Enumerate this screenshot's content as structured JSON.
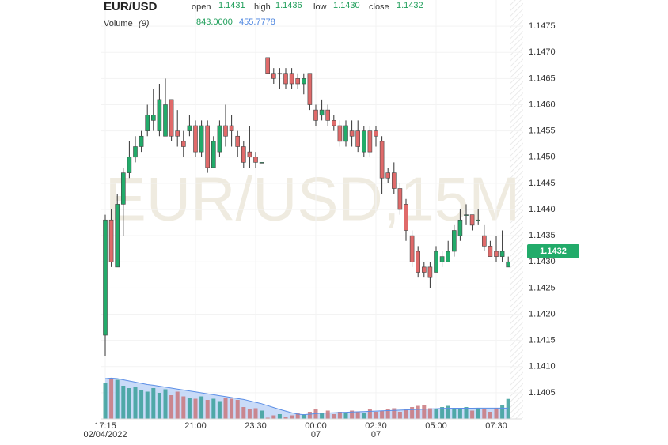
{
  "chart_data": {
    "type": "candlestick",
    "title": "EUR/USD",
    "watermark": "EUR/USD,15M",
    "ohlc_labels": [
      "open",
      "high",
      "low",
      "close"
    ],
    "ohlc_values": [
      1.1431,
      1.1436,
      1.143,
      1.1432
    ],
    "ohlc_value_labels": [
      "1.1431",
      "1.1436",
      "1.1430",
      "1.1432"
    ],
    "volume_label": "Volume",
    "volume_period": "(9)",
    "volume_legend_values": [
      843,
      455.7778
    ],
    "volume_legend_value_labels": [
      "843.0000",
      "455.7778"
    ],
    "categories": [
      "17:15",
      null,
      null,
      null,
      null,
      null,
      null,
      null,
      null,
      null,
      null,
      null,
      null,
      null,
      null,
      "21:00",
      null,
      null,
      null,
      null,
      null,
      null,
      null,
      null,
      null,
      "23:30",
      null,
      null,
      null,
      null,
      null,
      null,
      null,
      null,
      null,
      "00:00",
      null,
      null,
      null,
      null,
      null,
      null,
      null,
      null,
      null,
      "02:30",
      null,
      null,
      null,
      null,
      null,
      null,
      null,
      null,
      null,
      "05:00",
      null,
      null,
      null,
      null,
      null,
      null,
      null,
      null,
      null,
      "07:30",
      null,
      null
    ],
    "date_labels": [
      "02/04/2022",
      null,
      null,
      null,
      null,
      null,
      null,
      null,
      null,
      null,
      null,
      null,
      null,
      null,
      null,
      null,
      null,
      null,
      null,
      null,
      null,
      null,
      null,
      null,
      null,
      null,
      null,
      null,
      null,
      null,
      null,
      null,
      null,
      null,
      null,
      "07",
      null,
      null,
      null,
      null,
      null,
      null,
      null,
      null,
      null,
      "07",
      null,
      null,
      null,
      null,
      null,
      null,
      null,
      null,
      null,
      null,
      null,
      null,
      null,
      null,
      null,
      null,
      null,
      null,
      null,
      null,
      null,
      null
    ],
    "open": [
      1.1416,
      1.1438,
      1.1429,
      1.1441,
      1.1447,
      1.145,
      1.1452,
      1.1455,
      1.1457,
      1.1455,
      1.1454,
      1.1461,
      1.1455,
      1.1453,
      1.1455,
      1.1456,
      1.1451,
      1.1456,
      1.1448,
      1.1451,
      1.1456,
      1.1456,
      1.1454,
      1.1452,
      1.1451,
      1.145,
      1.1449,
      1.1469,
      1.1466,
      1.1466,
      1.1466,
      1.1466,
      1.1465,
      1.1464,
      1.1466,
      1.1459,
      1.1458,
      1.1459,
      1.1457,
      1.1456,
      1.1453,
      1.1455,
      1.1455,
      1.1451,
      1.1455,
      1.1455,
      1.1453,
      1.1447,
      1.1447,
      1.1444,
      1.1441,
      1.1435,
      1.1432,
      1.1429,
      1.1429,
      1.1428,
      1.143,
      1.143,
      1.1432,
      1.1435,
      1.1439,
      1.1439,
      1.1438,
      1.1435,
      1.1433,
      1.1432,
      1.1431,
      1.1429
    ],
    "high": [
      1.1439,
      1.144,
      1.1443,
      1.1448,
      1.1453,
      1.1454,
      1.1455,
      1.146,
      1.1463,
      1.1464,
      1.1465,
      1.1461,
      1.1459,
      1.1455,
      1.1458,
      1.1457,
      1.1457,
      1.1457,
      1.1454,
      1.1457,
      1.146,
      1.1458,
      1.1455,
      1.1453,
      1.1456,
      1.1451,
      1.1449,
      1.1469,
      1.1467,
      1.1467,
      1.1467,
      1.1467,
      1.1466,
      1.1466,
      1.1466,
      1.146,
      1.1461,
      1.146,
      1.1458,
      1.1457,
      1.1457,
      1.1457,
      1.1457,
      1.1456,
      1.1456,
      1.1456,
      1.1454,
      1.1448,
      1.1449,
      1.1445,
      1.1442,
      1.1436,
      1.1433,
      1.143,
      1.143,
      1.1433,
      1.1432,
      1.1434,
      1.1437,
      1.144,
      1.1441,
      1.1439,
      1.144,
      1.1437,
      1.1434,
      1.1435,
      1.1436,
      1.1431
    ],
    "low": [
      1.1412,
      1.1429,
      1.1429,
      1.1435,
      1.1446,
      1.1449,
      1.1451,
      1.1454,
      1.1455,
      1.1454,
      1.1454,
      1.1453,
      1.1452,
      1.145,
      1.1454,
      1.145,
      1.145,
      1.1447,
      1.1448,
      1.145,
      1.1452,
      1.1452,
      1.145,
      1.1448,
      1.1448,
      1.1448,
      1.1449,
      1.1466,
      1.1464,
      1.1463,
      1.1463,
      1.1463,
      1.1463,
      1.1462,
      1.1459,
      1.1456,
      1.1457,
      1.1456,
      1.1455,
      1.1452,
      1.1452,
      1.1452,
      1.1451,
      1.145,
      1.145,
      1.1452,
      1.1443,
      1.1445,
      1.1443,
      1.1439,
      1.1434,
      1.1429,
      1.1427,
      1.1427,
      1.1425,
      1.1428,
      1.1429,
      1.143,
      1.1431,
      1.1434,
      1.1437,
      1.1436,
      1.1437,
      1.1432,
      1.1431,
      1.143,
      1.143,
      1.1429
    ],
    "close": [
      1.1438,
      1.143,
      1.1441,
      1.1447,
      1.145,
      1.1452,
      1.1454,
      1.1458,
      1.1458,
      1.1461,
      1.146,
      1.1454,
      1.1454,
      1.1452,
      1.1456,
      1.1451,
      1.1456,
      1.1448,
      1.1453,
      1.1456,
      1.1454,
      1.1455,
      1.1452,
      1.1449,
      1.145,
      1.1449,
      1.1449,
      1.1466,
      1.1465,
      1.1466,
      1.1464,
      1.1464,
      1.1464,
      1.1465,
      1.146,
      1.1457,
      1.1459,
      1.1457,
      1.1456,
      1.1453,
      1.1456,
      1.1454,
      1.1452,
      1.1455,
      1.1451,
      1.1454,
      1.1446,
      1.1446,
      1.1444,
      1.144,
      1.1436,
      1.143,
      1.1428,
      1.1428,
      1.1427,
      1.1432,
      1.1431,
      1.1432,
      1.1436,
      1.1438,
      1.1439,
      1.1437,
      1.1438,
      1.1433,
      1.1431,
      1.1431,
      1.1432,
      1.143
    ],
    "volume": [
      1500,
      1700,
      1650,
      1400,
      1300,
      1350,
      1200,
      1150,
      1300,
      1100,
      1250,
      1000,
      1150,
      950,
      900,
      850,
      950,
      800,
      850,
      750,
      900,
      850,
      800,
      500,
      400,
      450,
      350,
      50,
      150,
      200,
      100,
      150,
      250,
      200,
      300,
      400,
      250,
      350,
      200,
      300,
      250,
      350,
      300,
      250,
      400,
      300,
      350,
      400,
      450,
      300,
      400,
      500,
      550,
      600,
      450,
      400,
      500,
      550,
      450,
      400,
      500,
      350,
      450,
      400,
      300,
      450,
      600,
      843
    ],
    "volume_ma": [
      1700,
      1720,
      1700,
      1650,
      1600,
      1550,
      1500,
      1450,
      1420,
      1380,
      1340,
      1300,
      1260,
      1220,
      1180,
      1140,
      1100,
      1060,
      1020,
      980,
      940,
      900,
      860,
      820,
      760,
      700,
      640,
      560,
      480,
      400,
      330,
      260,
      200,
      180,
      200,
      220,
      240,
      250,
      260,
      270,
      280,
      290,
      300,
      310,
      320,
      330,
      340,
      350,
      360,
      370,
      380,
      390,
      400,
      410,
      420,
      430,
      440,
      445,
      450,
      450,
      450,
      452,
      454,
      455,
      455,
      455,
      455,
      455.7778
    ],
    "ylim": [
      1.14,
      1.148
    ],
    "yticks": [
      {
        "value": 1.1475,
        "label": "1.1475"
      },
      {
        "value": 1.147,
        "label": "1.1470"
      },
      {
        "value": 1.1465,
        "label": "1.1465"
      },
      {
        "value": 1.146,
        "label": "1.1460"
      },
      {
        "value": 1.1455,
        "label": "1.1455"
      },
      {
        "value": 1.145,
        "label": "1.1450"
      },
      {
        "value": 1.1445,
        "label": "1.1445"
      },
      {
        "value": 1.144,
        "label": "1.1440"
      },
      {
        "value": 1.1435,
        "label": "1.1435"
      },
      {
        "value": 1.143,
        "label": "1.1430"
      },
      {
        "value": 1.1425,
        "label": "1.1425"
      },
      {
        "value": 1.142,
        "label": "1.1420"
      },
      {
        "value": 1.1415,
        "label": "1.1415"
      },
      {
        "value": 1.141,
        "label": "1.1410"
      },
      {
        "value": 1.1405,
        "label": "1.1405"
      }
    ],
    "vlim": [
      0,
      2000
    ],
    "grid": true,
    "up_color": "#22ab6a",
    "down_color": "#e06a6a",
    "volume_up_color": "#3a9f9a",
    "volume_down_color": "#c9777c",
    "ma_color": "#5b8ee6",
    "ma_fill": "#b7cff5",
    "header_value_color": "#1f9e5a",
    "ma_value_color": "#4d86e0"
  }
}
